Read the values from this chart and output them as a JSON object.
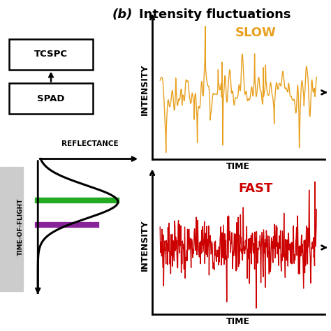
{
  "title_b": "(b)",
  "title_main": "Intensity fluctuations",
  "slow_label": "SLOW",
  "fast_label": "FAST",
  "intensity_label": "INTENSITY",
  "time_label": "TIME",
  "reflectance_label": "REFLECTANCE",
  "tof_label": "TIME-OF-FLIGHT",
  "tcspc_label": "TCSPC",
  "spad_label": "SPAD",
  "slow_color": "#E8A020",
  "fast_color": "#CC0000",
  "green_color": "#22AA22",
  "purple_color": "#882299",
  "bg_color": "#ffffff",
  "seed_slow": 42,
  "seed_fast": 7
}
